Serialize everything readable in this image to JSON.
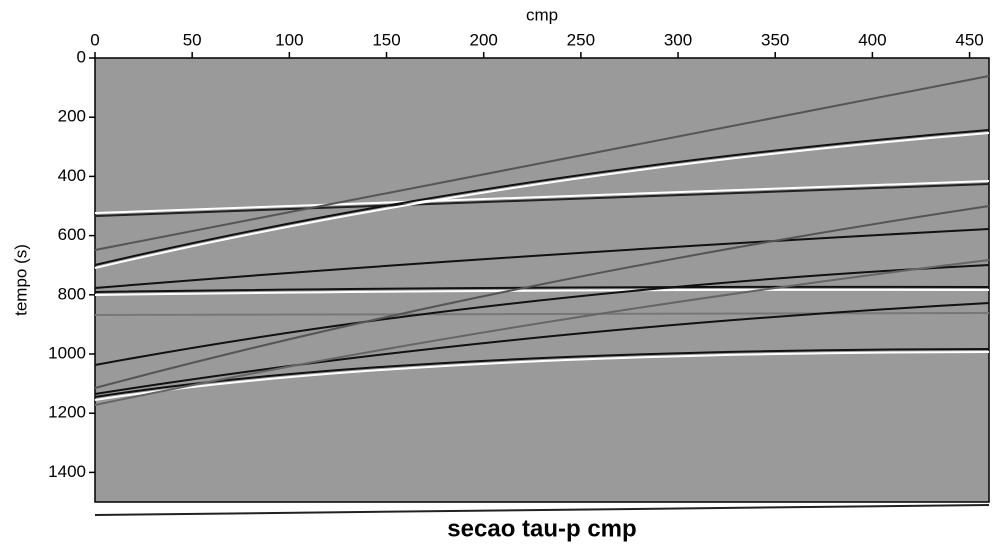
{
  "chart_data": {
    "type": "image",
    "title": "secao tau-p cmp",
    "xlabel": "cmp",
    "ylabel": "tempo (s)",
    "xlim": [
      0,
      460
    ],
    "xticks": [
      0,
      50,
      100,
      150,
      200,
      250,
      300,
      350,
      400,
      450
    ],
    "ylim": [
      1500,
      0
    ],
    "yticks": [
      0,
      200,
      400,
      600,
      800,
      1000,
      1200,
      1400
    ],
    "color": "#9a9a9a"
  }
}
